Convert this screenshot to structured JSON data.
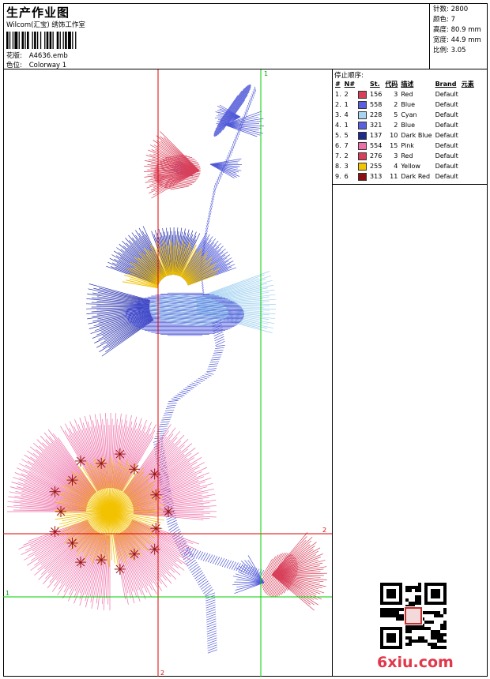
{
  "header": {
    "title": "生产作业图",
    "subtitle": "Wilcom(汇宝) 绣饰工作室",
    "design_label": "花版:",
    "design_value": "A4636.emb",
    "colorway_label": "色位:",
    "colorway_value": "Colorway 1"
  },
  "specs": [
    {
      "label": "针数:",
      "value": "2800"
    },
    {
      "label": "颜色:",
      "value": "7"
    },
    {
      "label": "高度:",
      "value": "80.9 mm"
    },
    {
      "label": "宽度:",
      "value": "44.9 mm"
    },
    {
      "label": "比例:",
      "value": "3.05"
    }
  ],
  "stop_sequence": {
    "title": "停止顺序:",
    "columns": [
      "#",
      "N#",
      "St.",
      "代码",
      "描述",
      "Brand",
      "元素"
    ],
    "rows": [
      {
        "idx": "1.",
        "n": "2",
        "color": "#d8405a",
        "st": "156",
        "code": "3",
        "desc": "Red",
        "brand": "Default"
      },
      {
        "idx": "2.",
        "n": "1",
        "color": "#5a5ee0",
        "st": "558",
        "code": "2",
        "desc": "Blue",
        "brand": "Default"
      },
      {
        "idx": "3.",
        "n": "4",
        "color": "#a8d4f2",
        "st": "228",
        "code": "5",
        "desc": "Cyan",
        "brand": "Default"
      },
      {
        "idx": "4.",
        "n": "1",
        "color": "#5a5ee0",
        "st": "321",
        "code": "2",
        "desc": "Blue",
        "brand": "Default"
      },
      {
        "idx": "5.",
        "n": "5",
        "color": "#1e2a8c",
        "st": "137",
        "code": "10",
        "desc": "Dark Blue",
        "brand": "Default"
      },
      {
        "idx": "6.",
        "n": "7",
        "color": "#ee6fa8",
        "st": "554",
        "code": "15",
        "desc": "Pink",
        "brand": "Default"
      },
      {
        "idx": "7.",
        "n": "2",
        "color": "#d8405a",
        "st": "276",
        "code": "3",
        "desc": "Red",
        "brand": "Default"
      },
      {
        "idx": "8.",
        "n": "3",
        "color": "#f5c400",
        "st": "255",
        "code": "4",
        "desc": "Yellow",
        "brand": "Default"
      },
      {
        "idx": "9.",
        "n": "6",
        "color": "#8c1010",
        "st": "313",
        "code": "11",
        "desc": "Dark Red",
        "brand": "Default"
      }
    ]
  },
  "guides": {
    "green_label": "1",
    "red_label": "2"
  },
  "watermark": "6xiu.com",
  "colors": {
    "guide_red": "#e00000",
    "guide_green": "#00cc00",
    "watermark": "#e0384a"
  }
}
